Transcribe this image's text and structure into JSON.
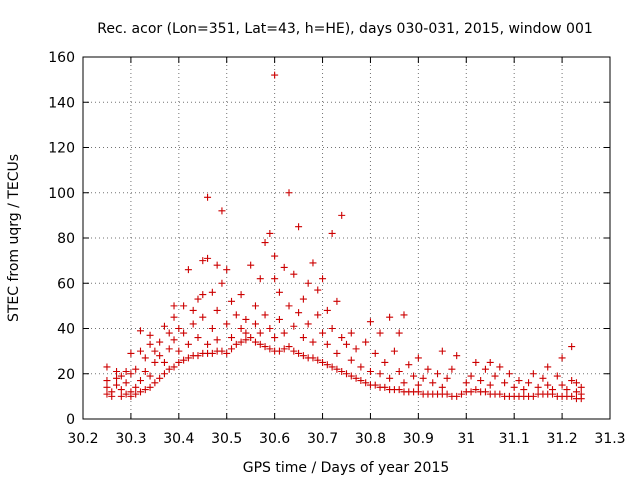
{
  "chart_data": {
    "type": "scatter",
    "title": "Rec. acor (Lon=351, Lat=43, h=HE), days 030-031, 2015, window 001",
    "xlabel": "GPS time / Days of year 2015",
    "ylabel": "STEC from uqrg / TECUs",
    "xlim": [
      30.2,
      31.3
    ],
    "ylim": [
      0,
      160
    ],
    "xticks": [
      30.2,
      30.3,
      30.4,
      30.5,
      30.6,
      30.7,
      30.8,
      30.9,
      31.0,
      31.1,
      31.2,
      31.3
    ],
    "xtick_labels": [
      "30.2",
      "30.3",
      "30.4",
      "30.5",
      "30.6",
      "30.7",
      "30.8",
      "30.9",
      "31",
      "31.1",
      "31.2",
      "31.3"
    ],
    "yticks": [
      0,
      20,
      40,
      60,
      80,
      100,
      120,
      140,
      160
    ],
    "ytick_labels": [
      "0",
      "20",
      "40",
      "60",
      "80",
      "100",
      "120",
      "140",
      "160"
    ],
    "grid": true,
    "marker": "+",
    "marker_color": "#cc0000",
    "series": [
      {
        "name": "STEC",
        "points": [
          [
            30.25,
            11
          ],
          [
            30.25,
            14
          ],
          [
            30.25,
            17
          ],
          [
            30.25,
            23
          ],
          [
            30.26,
            10
          ],
          [
            30.26,
            12
          ],
          [
            30.27,
            15
          ],
          [
            30.27,
            18
          ],
          [
            30.27,
            21
          ],
          [
            30.28,
            10
          ],
          [
            30.28,
            13
          ],
          [
            30.28,
            19
          ],
          [
            30.29,
            11
          ],
          [
            30.29,
            16
          ],
          [
            30.29,
            21
          ],
          [
            30.3,
            10
          ],
          [
            30.3,
            12
          ],
          [
            30.3,
            20
          ],
          [
            30.3,
            29
          ],
          [
            30.31,
            11
          ],
          [
            30.31,
            14
          ],
          [
            30.31,
            22
          ],
          [
            30.32,
            12
          ],
          [
            30.32,
            17
          ],
          [
            30.32,
            30
          ],
          [
            30.32,
            39
          ],
          [
            30.33,
            13
          ],
          [
            30.33,
            21
          ],
          [
            30.33,
            27
          ],
          [
            30.34,
            14
          ],
          [
            30.34,
            19
          ],
          [
            30.34,
            33
          ],
          [
            30.34,
            37
          ],
          [
            30.35,
            16
          ],
          [
            30.35,
            25
          ],
          [
            30.35,
            30
          ],
          [
            30.36,
            18
          ],
          [
            30.36,
            28
          ],
          [
            30.36,
            34
          ],
          [
            30.37,
            20
          ],
          [
            30.37,
            25
          ],
          [
            30.37,
            41
          ],
          [
            30.38,
            22
          ],
          [
            30.38,
            31
          ],
          [
            30.38,
            38
          ],
          [
            30.39,
            23
          ],
          [
            30.39,
            35
          ],
          [
            30.39,
            45
          ],
          [
            30.39,
            50
          ],
          [
            30.4,
            25
          ],
          [
            30.4,
            30
          ],
          [
            30.4,
            40
          ],
          [
            30.41,
            26
          ],
          [
            30.41,
            38
          ],
          [
            30.41,
            50
          ],
          [
            30.42,
            27
          ],
          [
            30.42,
            33
          ],
          [
            30.42,
            66
          ],
          [
            30.43,
            28
          ],
          [
            30.43,
            42
          ],
          [
            30.43,
            48
          ],
          [
            30.44,
            28
          ],
          [
            30.44,
            36
          ],
          [
            30.44,
            53
          ],
          [
            30.45,
            29
          ],
          [
            30.45,
            45
          ],
          [
            30.45,
            55
          ],
          [
            30.45,
            70
          ],
          [
            30.46,
            29
          ],
          [
            30.46,
            33
          ],
          [
            30.46,
            98
          ],
          [
            30.46,
            71
          ],
          [
            30.47,
            29
          ],
          [
            30.47,
            40
          ],
          [
            30.47,
            56
          ],
          [
            30.48,
            30
          ],
          [
            30.48,
            35
          ],
          [
            30.48,
            68
          ],
          [
            30.48,
            48
          ],
          [
            30.49,
            30
          ],
          [
            30.49,
            60
          ],
          [
            30.49,
            92
          ],
          [
            30.5,
            29
          ],
          [
            30.5,
            42
          ],
          [
            30.5,
            66
          ],
          [
            30.51,
            31
          ],
          [
            30.51,
            36
          ],
          [
            30.51,
            52
          ],
          [
            30.52,
            33
          ],
          [
            30.52,
            46
          ],
          [
            30.53,
            34
          ],
          [
            30.53,
            40
          ],
          [
            30.53,
            55
          ],
          [
            30.54,
            35
          ],
          [
            30.54,
            38
          ],
          [
            30.54,
            44
          ],
          [
            30.55,
            36
          ],
          [
            30.55,
            68
          ],
          [
            30.56,
            34
          ],
          [
            30.56,
            42
          ],
          [
            30.56,
            50
          ],
          [
            30.57,
            33
          ],
          [
            30.57,
            38
          ],
          [
            30.57,
            62
          ],
          [
            30.58,
            32
          ],
          [
            30.58,
            46
          ],
          [
            30.58,
            78
          ],
          [
            30.59,
            31
          ],
          [
            30.59,
            40
          ],
          [
            30.59,
            82
          ],
          [
            30.6,
            30
          ],
          [
            30.6,
            36
          ],
          [
            30.6,
            152
          ],
          [
            30.6,
            72
          ],
          [
            30.6,
            62
          ],
          [
            30.61,
            30
          ],
          [
            30.61,
            44
          ],
          [
            30.61,
            56
          ],
          [
            30.62,
            31
          ],
          [
            30.62,
            38
          ],
          [
            30.62,
            67
          ],
          [
            30.63,
            32
          ],
          [
            30.63,
            50
          ],
          [
            30.63,
            100
          ],
          [
            30.64,
            30
          ],
          [
            30.64,
            41
          ],
          [
            30.64,
            64
          ],
          [
            30.65,
            29
          ],
          [
            30.65,
            47
          ],
          [
            30.65,
            85
          ],
          [
            30.66,
            28
          ],
          [
            30.66,
            36
          ],
          [
            30.66,
            53
          ],
          [
            30.67,
            27
          ],
          [
            30.67,
            42
          ],
          [
            30.67,
            60
          ],
          [
            30.68,
            27
          ],
          [
            30.68,
            34
          ],
          [
            30.68,
            69
          ],
          [
            30.69,
            26
          ],
          [
            30.69,
            46
          ],
          [
            30.69,
            57
          ],
          [
            30.7,
            25
          ],
          [
            30.7,
            38
          ],
          [
            30.7,
            62
          ],
          [
            30.71,
            24
          ],
          [
            30.71,
            33
          ],
          [
            30.71,
            48
          ],
          [
            30.72,
            23
          ],
          [
            30.72,
            40
          ],
          [
            30.72,
            82
          ],
          [
            30.73,
            22
          ],
          [
            30.73,
            29
          ],
          [
            30.73,
            52
          ],
          [
            30.74,
            21
          ],
          [
            30.74,
            36
          ],
          [
            30.74,
            90
          ],
          [
            30.75,
            20
          ],
          [
            30.75,
            33
          ],
          [
            30.76,
            19
          ],
          [
            30.76,
            26
          ],
          [
            30.76,
            38
          ],
          [
            30.77,
            18
          ],
          [
            30.77,
            31
          ],
          [
            30.78,
            17
          ],
          [
            30.78,
            23
          ],
          [
            30.79,
            16
          ],
          [
            30.79,
            34
          ],
          [
            30.8,
            15
          ],
          [
            30.8,
            21
          ],
          [
            30.8,
            43
          ],
          [
            30.81,
            15
          ],
          [
            30.81,
            29
          ],
          [
            30.82,
            14
          ],
          [
            30.82,
            20
          ],
          [
            30.82,
            38
          ],
          [
            30.83,
            14
          ],
          [
            30.83,
            25
          ],
          [
            30.84,
            13
          ],
          [
            30.84,
            18
          ],
          [
            30.84,
            45
          ],
          [
            30.85,
            13
          ],
          [
            30.85,
            30
          ],
          [
            30.86,
            13
          ],
          [
            30.86,
            21
          ],
          [
            30.86,
            38
          ],
          [
            30.87,
            12
          ],
          [
            30.87,
            16
          ],
          [
            30.87,
            46
          ],
          [
            30.88,
            12
          ],
          [
            30.88,
            24
          ],
          [
            30.89,
            12
          ],
          [
            30.89,
            19
          ],
          [
            30.9,
            12
          ],
          [
            30.9,
            15
          ],
          [
            30.9,
            27
          ],
          [
            30.91,
            11
          ],
          [
            30.91,
            18
          ],
          [
            30.92,
            11
          ],
          [
            30.92,
            22
          ],
          [
            30.93,
            11
          ],
          [
            30.93,
            16
          ],
          [
            30.94,
            11
          ],
          [
            30.94,
            20
          ],
          [
            30.95,
            11
          ],
          [
            30.95,
            14
          ],
          [
            30.95,
            30
          ],
          [
            30.96,
            11
          ],
          [
            30.96,
            18
          ],
          [
            30.97,
            10
          ],
          [
            30.97,
            22
          ],
          [
            30.98,
            10
          ],
          [
            30.98,
            28
          ],
          [
            30.99,
            11
          ],
          [
            31.0,
            12
          ],
          [
            31.0,
            16
          ],
          [
            31.01,
            12
          ],
          [
            31.01,
            19
          ],
          [
            31.02,
            13
          ],
          [
            31.02,
            25
          ],
          [
            31.03,
            12
          ],
          [
            31.03,
            17
          ],
          [
            31.04,
            12
          ],
          [
            31.04,
            22
          ],
          [
            31.05,
            11
          ],
          [
            31.05,
            15
          ],
          [
            31.05,
            25
          ],
          [
            31.06,
            11
          ],
          [
            31.06,
            19
          ],
          [
            31.07,
            11
          ],
          [
            31.07,
            23
          ],
          [
            31.08,
            10
          ],
          [
            31.08,
            16
          ],
          [
            31.09,
            10
          ],
          [
            31.09,
            20
          ],
          [
            31.1,
            10
          ],
          [
            31.1,
            14
          ],
          [
            31.11,
            10
          ],
          [
            31.11,
            17
          ],
          [
            31.12,
            10
          ],
          [
            31.12,
            13
          ],
          [
            31.13,
            10
          ],
          [
            31.13,
            16
          ],
          [
            31.14,
            10
          ],
          [
            31.14,
            20
          ],
          [
            31.15,
            11
          ],
          [
            31.15,
            14
          ],
          [
            31.16,
            11
          ],
          [
            31.16,
            18
          ],
          [
            31.17,
            11
          ],
          [
            31.17,
            15
          ],
          [
            31.17,
            23
          ],
          [
            31.18,
            11
          ],
          [
            31.18,
            13
          ],
          [
            31.19,
            10
          ],
          [
            31.19,
            19
          ],
          [
            31.2,
            10
          ],
          [
            31.2,
            15
          ],
          [
            31.2,
            27
          ],
          [
            31.21,
            10
          ],
          [
            31.21,
            13
          ],
          [
            31.22,
            10
          ],
          [
            31.22,
            17
          ],
          [
            31.22,
            32
          ],
          [
            31.23,
            9
          ],
          [
            31.23,
            12
          ],
          [
            31.23,
            16
          ],
          [
            31.24,
            9
          ],
          [
            31.24,
            11
          ],
          [
            31.24,
            14
          ]
        ]
      }
    ]
  }
}
